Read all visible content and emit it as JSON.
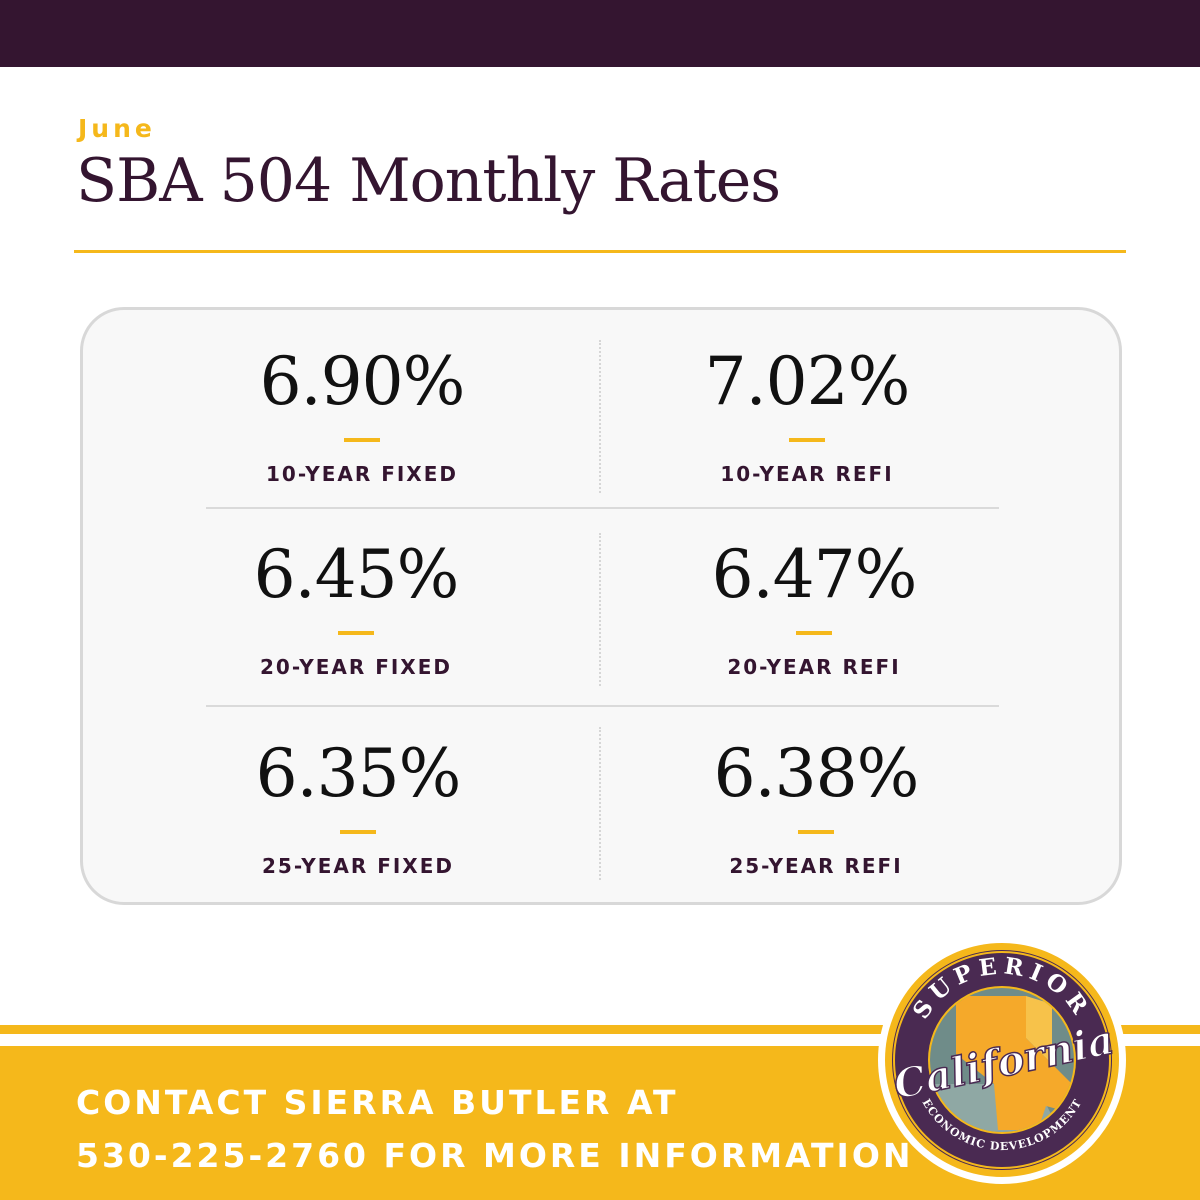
{
  "header": {
    "month": "June",
    "title": "SBA 504 Monthly Rates"
  },
  "rates": [
    {
      "value": "6.90%",
      "label": "10-YEAR FIXED"
    },
    {
      "value": "7.02%",
      "label": "10-YEAR REFI"
    },
    {
      "value": "6.45%",
      "label": "20-YEAR FIXED"
    },
    {
      "value": "6.47%",
      "label": "20-YEAR REFI"
    },
    {
      "value": "6.35%",
      "label": "25-YEAR FIXED"
    },
    {
      "value": "6.38%",
      "label": "25-YEAR REFI"
    }
  ],
  "footer": {
    "line1": "CONTACT SIERRA BUTLER AT",
    "line2": "530-225-2760 FOR MORE INFORMATION"
  },
  "logo": {
    "top_text": "SUPERIOR",
    "script_text": "California",
    "bottom_text": "ECONOMIC DEVELOPMENT"
  },
  "colors": {
    "brand_purple": "#341530",
    "brand_gold": "#f5b81b",
    "card_background": "#f8f8f8"
  }
}
